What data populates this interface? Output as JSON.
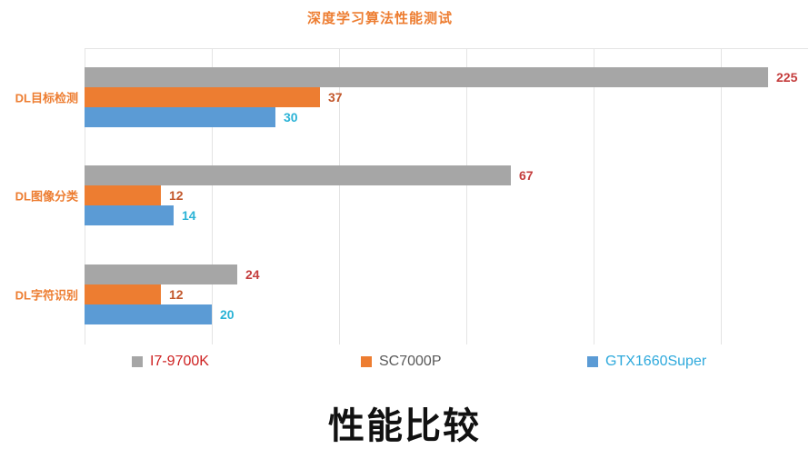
{
  "chart_data": {
    "type": "bar",
    "orientation": "horizontal",
    "title": "深度学习算法性能测试",
    "bottom_title": "性能比较",
    "categories": [
      "DL目标检测",
      "DL图像分类",
      "DL字符识别"
    ],
    "series": [
      {
        "name": "I7-9700K",
        "color": "#A6A6A6",
        "value_label_color": "#C43C3C",
        "legend_text_color": "#CE2121",
        "values": [
          225,
          67,
          24
        ]
      },
      {
        "name": "SC7000P",
        "color": "#ED7D31",
        "value_label_color": "#C2572B",
        "legend_text_color": "#595959",
        "values": [
          37,
          12,
          12
        ]
      },
      {
        "name": "GTX1660Super",
        "color": "#5B9BD5",
        "value_label_color": "#2BB3D6",
        "legend_text_color": "#2EA9DC",
        "values": [
          30,
          14,
          20
        ]
      }
    ],
    "x_axis": {
      "min": 0,
      "gridline_step": 20,
      "gridlines_units": [
        0,
        20,
        40,
        60,
        80,
        100
      ],
      "tick_labels_visible": false,
      "note": "gray 225 bar is drawn truncated at ~107 units (past last gridline)"
    },
    "grid": true,
    "legend_position": "bottom",
    "colors": {
      "title_orange": "#ED7D31",
      "category_label_orange": "#ED7D31",
      "gridline": "#E4E4E4",
      "bottom_title": "#111111"
    }
  }
}
